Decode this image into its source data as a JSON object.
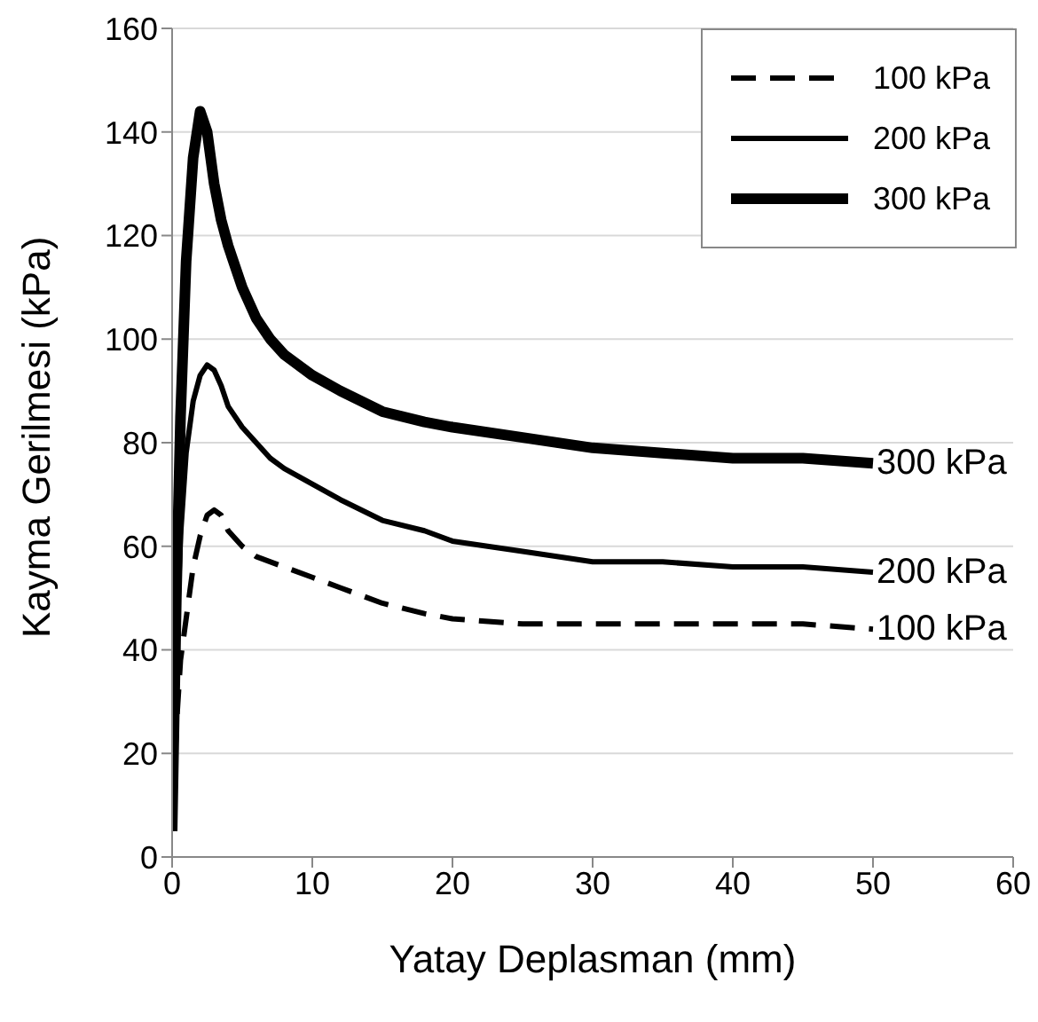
{
  "chart_data": {
    "type": "line",
    "xlabel": "Yatay Deplasman (mm)",
    "ylabel": "Kayma Gerilmesi (kPa)",
    "xlim": [
      0,
      60
    ],
    "xticks": [
      0,
      10,
      20,
      30,
      40,
      50,
      60
    ],
    "ylim": [
      0,
      160
    ],
    "yticks": [
      0,
      20,
      40,
      60,
      80,
      100,
      120,
      140,
      160
    ],
    "grid": "y",
    "legend": "top right",
    "marker": "none",
    "series": [
      {
        "name": "100 kPa",
        "color": "#000000",
        "line_style": "dashed",
        "x": [
          0,
          0.3,
          0.6,
          1,
          1.5,
          2,
          2.5,
          3,
          3.5,
          4,
          5,
          6,
          8,
          10,
          12,
          15,
          18,
          20,
          25,
          30,
          35,
          40,
          45,
          50
        ],
        "values": [
          5,
          25,
          38,
          46,
          56,
          62,
          66,
          67,
          66,
          63,
          60,
          58,
          56,
          54,
          52,
          49,
          47,
          46,
          45,
          45,
          45,
          45,
          45,
          44
        ]
      },
      {
        "name": "200 kPa",
        "color": "#000000",
        "line_style": "solid",
        "x": [
          0,
          0.3,
          0.6,
          1,
          1.5,
          2,
          2.5,
          3,
          3.5,
          4,
          5,
          6,
          7,
          8,
          10,
          12,
          15,
          18,
          20,
          25,
          30,
          35,
          40,
          45,
          50
        ],
        "values": [
          5,
          40,
          62,
          78,
          88,
          93,
          95,
          94,
          91,
          87,
          83,
          80,
          77,
          75,
          72,
          69,
          65,
          63,
          61,
          59,
          57,
          57,
          56,
          56,
          55
        ]
      },
      {
        "name": "300 kPa",
        "color": "#000000",
        "line_style": "solid",
        "x": [
          0,
          0.3,
          0.6,
          1,
          1.5,
          2,
          2.5,
          3,
          3.5,
          4,
          5,
          6,
          7,
          8,
          10,
          12,
          15,
          18,
          20,
          25,
          30,
          35,
          40,
          45,
          50
        ],
        "values": [
          5,
          50,
          85,
          115,
          135,
          144,
          140,
          130,
          123,
          118,
          110,
          104,
          100,
          97,
          93,
          90,
          86,
          84,
          83,
          81,
          79,
          78,
          77,
          77,
          76
        ]
      }
    ],
    "annotations": [
      "100 kPa",
      "200 kPa",
      "300 kPa"
    ]
  }
}
